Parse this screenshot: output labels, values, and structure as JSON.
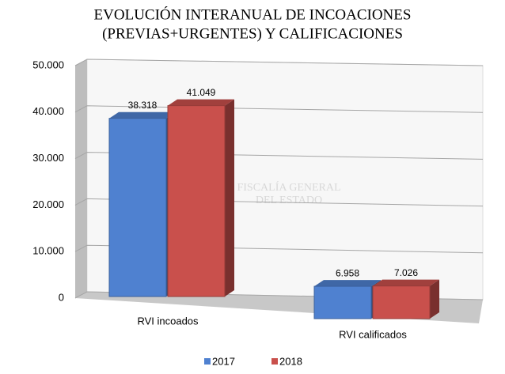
{
  "chart_data": {
    "type": "bar3d",
    "title": [
      "EVOLUCIÓN INTERANUAL DE INCOACIONES",
      "(PREVIAS+URGENTES) Y CALIFICACIONES"
    ],
    "watermark": [
      "FISCALÍA GENERAL",
      "DEL ESTADO"
    ],
    "categories": [
      "RVI incoados",
      "RVI calificados"
    ],
    "series": [
      {
        "name": "2017",
        "color": "#4f81d0",
        "values": [
          38318,
          6958
        ],
        "value_labels": [
          "38.318",
          "6.958"
        ]
      },
      {
        "name": "2018",
        "color": "#c9504c",
        "values": [
          41049,
          7026
        ],
        "value_labels": [
          "41.049",
          "7.026"
        ]
      }
    ],
    "ylim": [
      0,
      50000
    ],
    "yticks": [
      0,
      {
        "value": 10000,
        "label": "10.000"
      },
      {
        "value": 20000,
        "label": "20.000"
      },
      {
        "value": 30000,
        "label": "30.000"
      },
      {
        "value": 40000,
        "label": "40.000"
      },
      {
        "value": 50000,
        "label": "50.000"
      }
    ],
    "grid": true,
    "legend": "bottom"
  }
}
